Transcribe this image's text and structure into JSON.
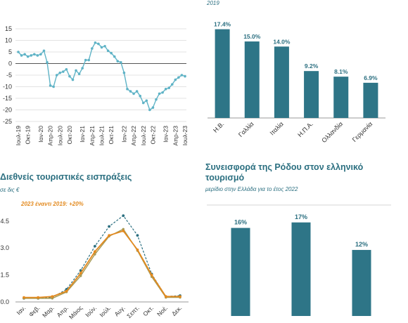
{
  "colors": {
    "teal": "#2b6f80",
    "bar": "#2e7587",
    "line_light": "#5fb3c6",
    "orange": "#e38a1f",
    "olive": "#a79a55",
    "grid": "#c8c8c8",
    "axis_text": "#333333"
  },
  "texts": {
    "top_right_subtitle": "2019",
    "receipts_title": "Διεθνείς τουριστικές εισπράξεις",
    "receipts_sub": "σε δις €",
    "receipts_annotation": "2023 έναντι 2019: +20%",
    "rhodes_title": "Συνεισφορά της Ρόδου στον ελληνικό τουρισμό",
    "rhodes_sub": "μερίδιο στην Ελλάδα για το έτος 2022"
  },
  "chart_data": [
    {
      "id": "index_line",
      "type": "line",
      "title": "",
      "xlabel": "",
      "ylabel": "",
      "ylim": [
        -25,
        15
      ],
      "yticks": [
        "15",
        "10",
        "5",
        "0",
        "-5",
        "-10",
        "-15",
        "-20",
        "-25"
      ],
      "ytick_values": [
        15,
        10,
        5,
        0,
        -5,
        -10,
        -15,
        -20,
        -25
      ],
      "x_tick_labels": [
        "Ιουλ-19",
        "Οκτ-19",
        "Ιαν-20",
        "Απρ-20",
        "Ιουλ-20",
        "Οκτ-20",
        "Ιαν-21",
        "Απρ-21",
        "Ιουλ-21",
        "Οκτ-21",
        "Ιαν-22",
        "Απρ-22",
        "Ιουλ-22",
        "Οκτ-22",
        "Ιαν-23",
        "Απρ-23",
        "Ιουλ-23"
      ],
      "series": [
        {
          "values": [
            5,
            3.5,
            4,
            3,
            3.5,
            4,
            3.5,
            4,
            5.5,
            0.5,
            -9.5,
            -10,
            -5,
            -4,
            -3.5,
            -2.5,
            -5.5,
            -7,
            -3,
            -4.5,
            -2,
            1.5,
            1.5,
            6.5,
            9,
            8.5,
            7,
            7.5,
            5.5,
            4.5,
            3,
            1,
            0.5,
            -4,
            -11,
            -12,
            -13,
            -12,
            -14,
            -17,
            -16,
            -20,
            -19,
            -15.5,
            -13,
            -12.5,
            -11,
            -10.5,
            -9,
            -7,
            -6,
            -5,
            -5.5
          ]
        }
      ]
    },
    {
      "id": "countries_bar",
      "type": "bar",
      "title": "",
      "categories": [
        "Η.Β.",
        "Γαλλία",
        "Ιταλία",
        "Η.Π.Α.",
        "Ολλανδία",
        "Γερμανία"
      ],
      "values": [
        17.4,
        15.0,
        14.0,
        9.2,
        8.1,
        6.9
      ],
      "value_labels": [
        "17.4%",
        "15.0%",
        "14.0%",
        "9.2%",
        "8.1%",
        "6.9%"
      ],
      "ylim": [
        0,
        19
      ]
    },
    {
      "id": "receipts_line",
      "type": "line",
      "title": "Διεθνείς τουριστικές εισπράξεις",
      "ylabel": "σε δις €",
      "ylim": [
        0,
        5
      ],
      "yticks": [
        "4.5",
        "3.0",
        "1.5",
        "0.0"
      ],
      "ytick_values": [
        4.5,
        3.0,
        1.5,
        0.0
      ],
      "categories": [
        "Ιαν.",
        "Φεβ.",
        "Μαρ.",
        "Απρ.",
        "Μάιος",
        "Ιούν.",
        "Ιούλ.",
        "Αυγ.",
        "Σεπτ.",
        "Οκτ.",
        "Νοέ.",
        "Δεκ."
      ],
      "series": [
        {
          "values": [
            0.2,
            0.2,
            0.25,
            0.7,
            1.75,
            3.1,
            4.2,
            4.8,
            3.7,
            1.55,
            0.3,
            0.35
          ]
        },
        {
          "values": [
            0.2,
            0.2,
            0.2,
            0.55,
            1.45,
            2.65,
            3.65,
            4.05,
            2.85,
            1.4,
            0.25,
            0.25
          ]
        },
        {
          "values": [
            0.25,
            0.25,
            0.3,
            0.6,
            1.6,
            2.8,
            3.7,
            3.95,
            2.9,
            1.5,
            0.3,
            0.3
          ]
        }
      ],
      "annotation": "2023 έναντι 2019: +20%"
    },
    {
      "id": "rhodes_bar",
      "type": "bar",
      "title": "Συνεισφορά της Ρόδου στον ελληνικό τουρισμό",
      "subtitle": "μερίδιο στην Ελλάδα για το έτος 2022",
      "values": [
        16,
        17,
        12
      ],
      "value_labels": [
        "16%",
        "17%",
        "12%"
      ],
      "ylim": [
        0,
        18.5
      ]
    }
  ]
}
